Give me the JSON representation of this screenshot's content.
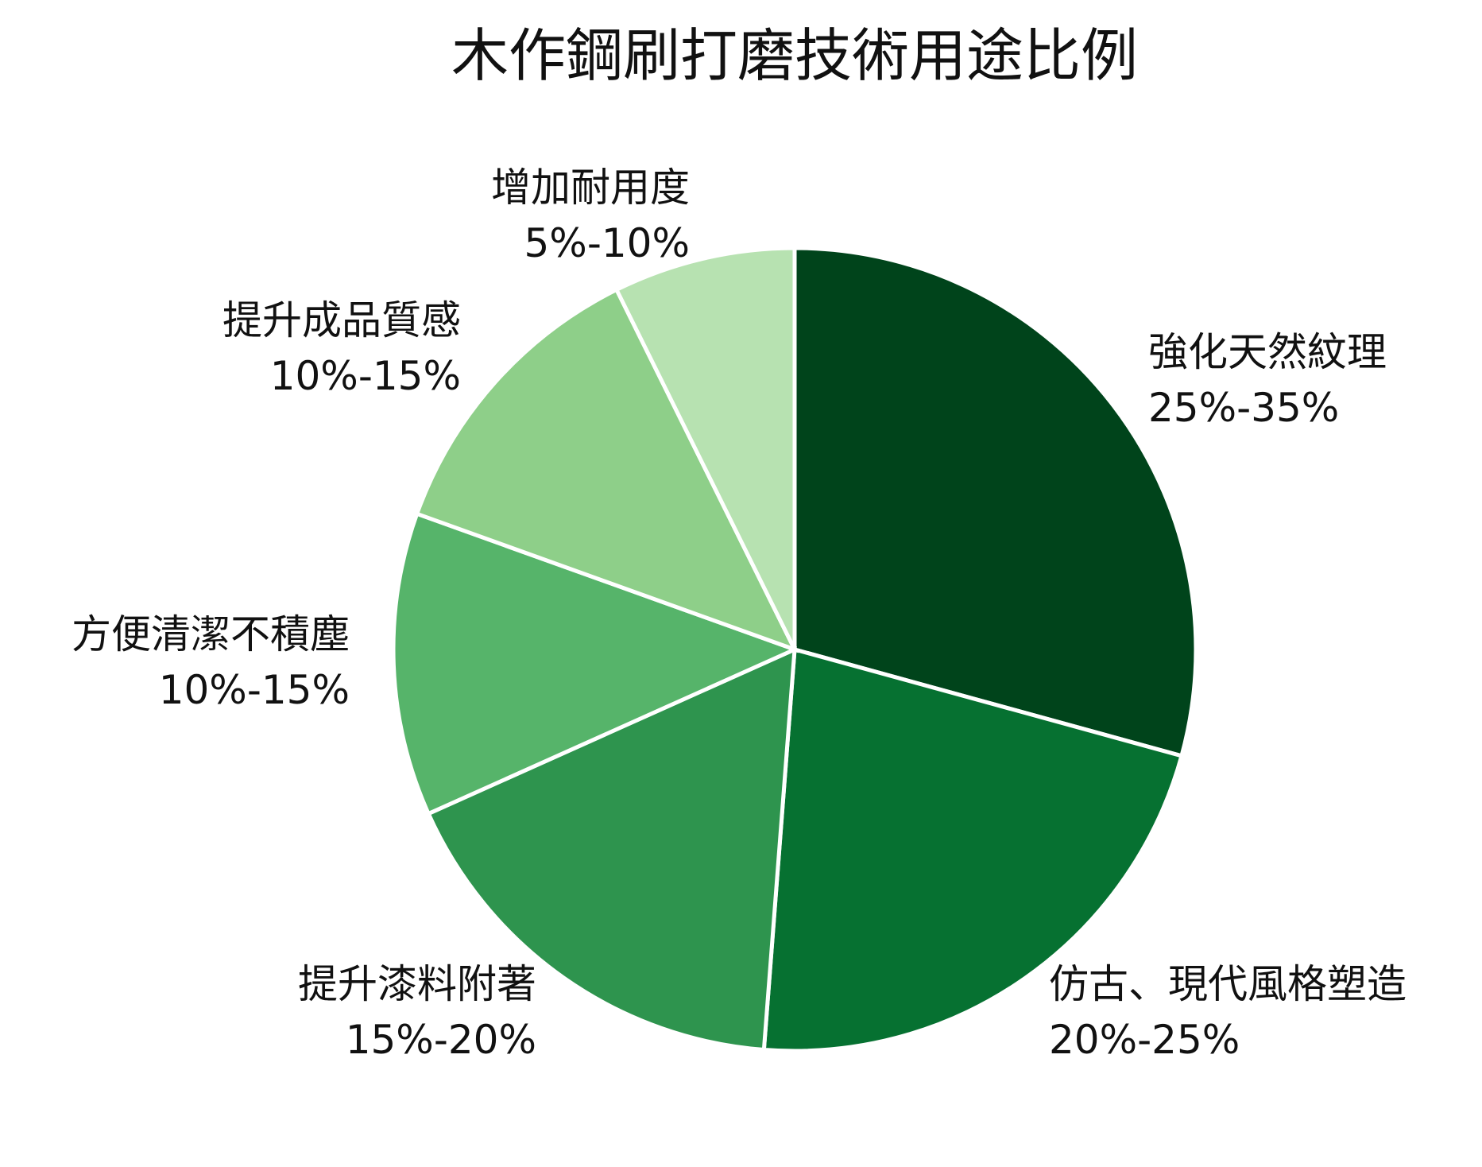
{
  "chart_data": {
    "type": "pie",
    "title": "木作鋼刷打磨技術用途比例",
    "slices": [
      {
        "label": "強化天然紋理",
        "value_text": "25%-35%",
        "value": 30,
        "color": "#00441b"
      },
      {
        "label": "仿古、現代風格塑造",
        "value_text": "20%-25%",
        "value": 22.5,
        "color": "#067131"
      },
      {
        "label": "提升漆料附著",
        "value_text": "15%-20%",
        "value": 17.5,
        "color": "#2e944e"
      },
      {
        "label": "方便清潔不積塵",
        "value_text": "10%-15%",
        "value": 12.5,
        "color": "#56b46a"
      },
      {
        "label": "提升成品質感",
        "value_text": "10%-15%",
        "value": 12.5,
        "color": "#8ecf89"
      },
      {
        "label": "增加耐用度",
        "value_text": "5%-10%",
        "value": 7.5,
        "color": "#b7e2b1"
      }
    ]
  }
}
